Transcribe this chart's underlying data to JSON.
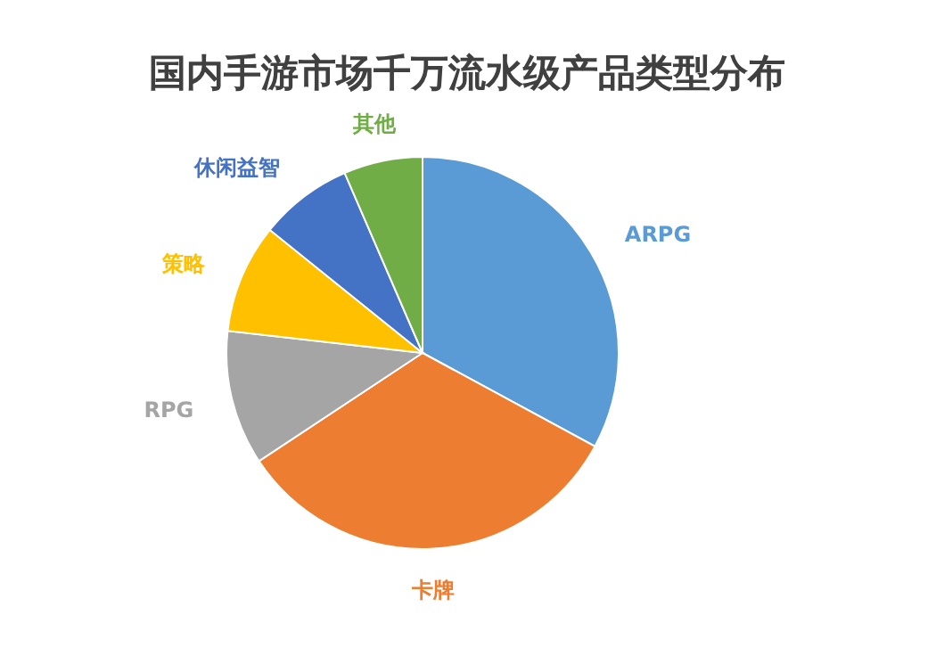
{
  "chart_data": {
    "type": "pie",
    "title": "国内手游市场千万流水级产品类型分布",
    "categories": [
      "ARPG",
      "卡牌",
      "RPG",
      "策略",
      "休闲益智",
      "其他"
    ],
    "values": [
      32.9,
      32.8,
      11.1,
      9,
      7.7,
      6.5
    ],
    "colors": [
      "#5b9bd5",
      "#ed7d31",
      "#a5a5a5",
      "#ffc000",
      "#4472c4",
      "#70ad47"
    ]
  }
}
